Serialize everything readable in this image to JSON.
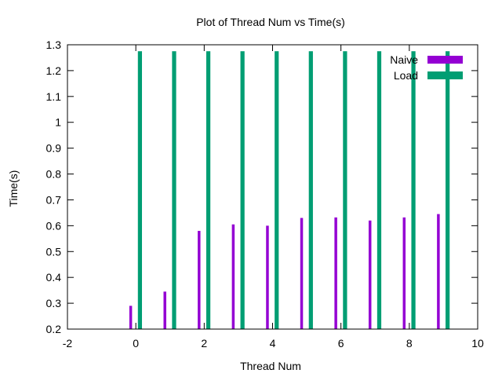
{
  "chart_data": {
    "type": "bar",
    "title": "Plot of Thread Num vs Time(s)",
    "xlabel": "Thread Num",
    "ylabel": "Time(s)",
    "xlim": [
      -2,
      10
    ],
    "ylim": [
      0.2,
      1.3
    ],
    "xticks": [
      -2,
      0,
      2,
      4,
      6,
      8,
      10
    ],
    "yticks": [
      0.2,
      0.3,
      0.4,
      0.5,
      0.6,
      0.7,
      0.8,
      0.9,
      1,
      1.1,
      1.2,
      1.3
    ],
    "categories": [
      0,
      1,
      2,
      3,
      4,
      5,
      6,
      7,
      8,
      9
    ],
    "legend_position": "top-right",
    "grid": false,
    "series": [
      {
        "name": "Naive",
        "color": "#9400d3",
        "offset": -0.15,
        "bar_width": 0.08,
        "values": [
          0.29,
          0.345,
          0.58,
          0.605,
          0.6,
          0.63,
          0.632,
          0.62,
          0.632,
          0.645
        ]
      },
      {
        "name": "Load",
        "color": "#009e73",
        "offset": 0.12,
        "bar_width": 0.12,
        "values": [
          1.275,
          1.275,
          1.275,
          1.275,
          1.275,
          1.275,
          1.275,
          1.275,
          1.275,
          1.275
        ]
      }
    ]
  }
}
